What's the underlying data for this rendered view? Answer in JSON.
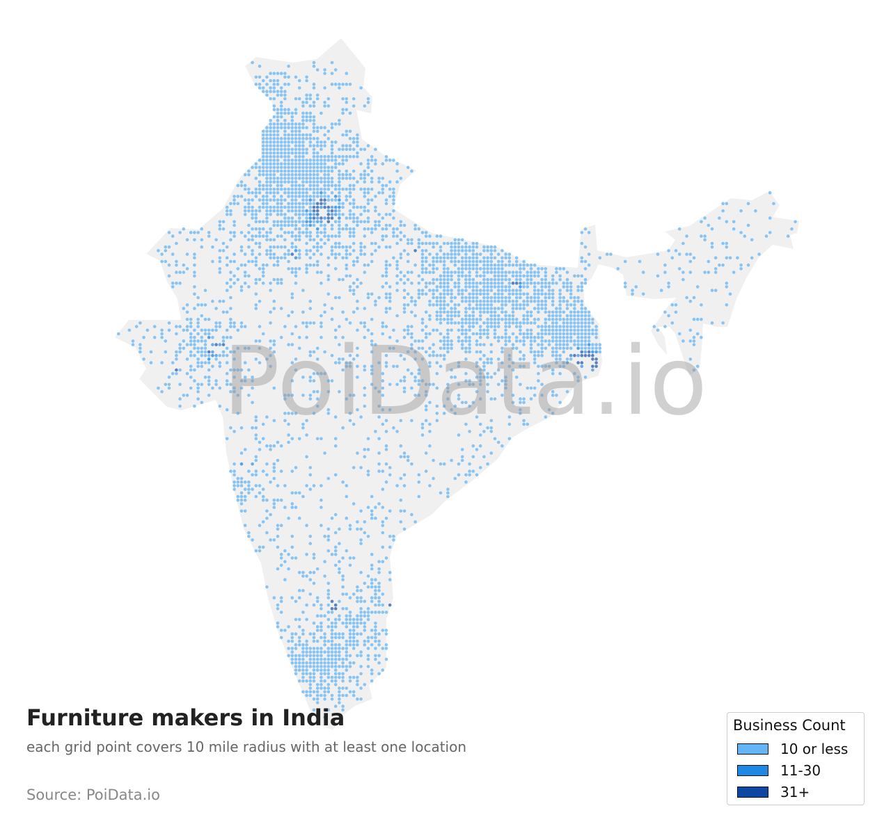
{
  "title": "Furniture makers in India",
  "subtitle": "each grid point covers 10 mile radius with at least one location",
  "source": "Source: PoiData.io",
  "watermark": "PoiData.io",
  "map": {
    "region": "India",
    "background_fill": "#f0f0f0",
    "point_radius_miles": 10
  },
  "legend": {
    "title": "Business Count",
    "items": [
      {
        "label": "10 or less",
        "color": "#64b5f6"
      },
      {
        "label": "11-30",
        "color": "#1e88e5"
      },
      {
        "label": "31+",
        "color": "#0d47a1"
      }
    ]
  }
}
